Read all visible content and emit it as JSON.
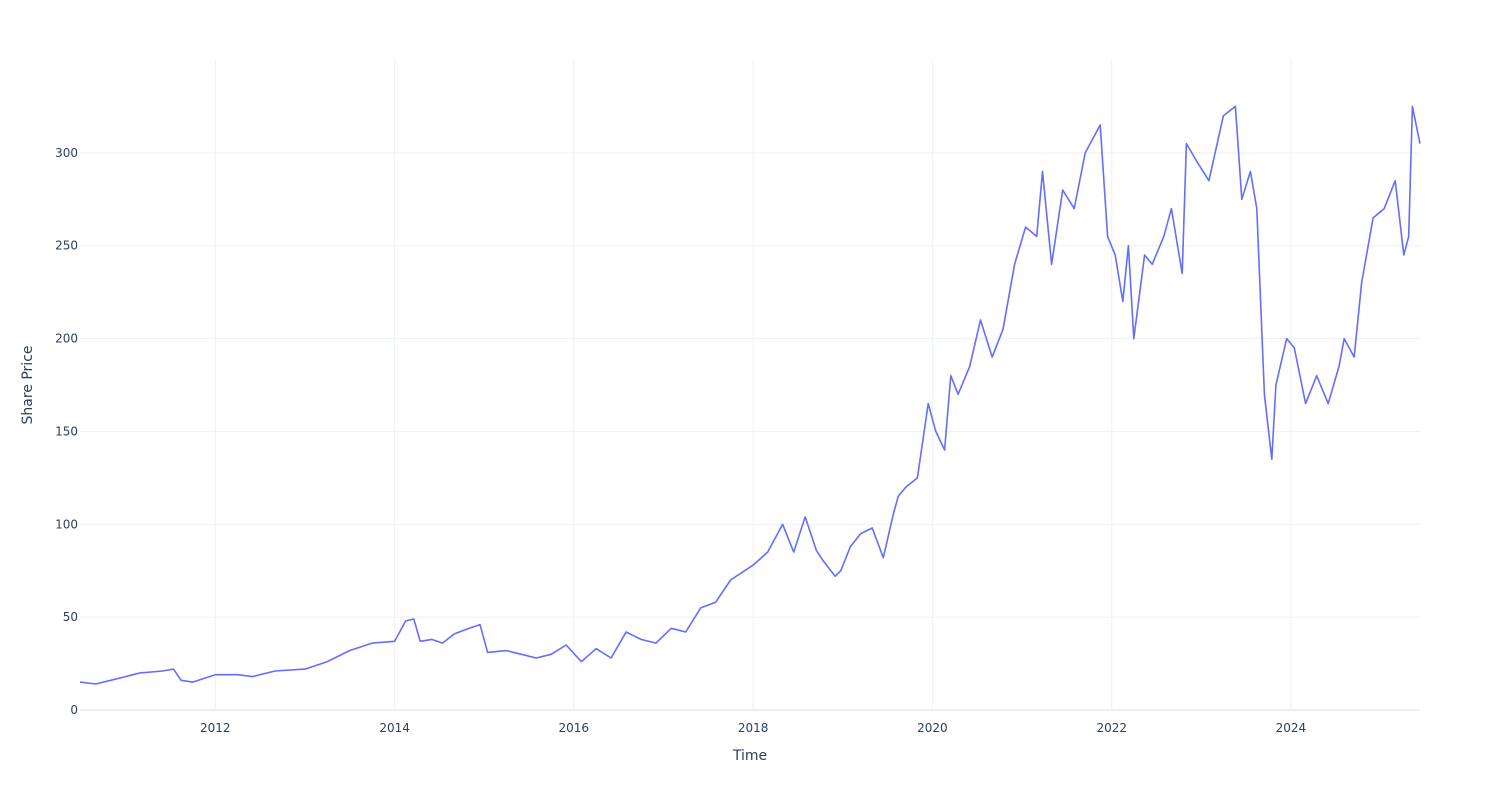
{
  "chart_data": {
    "type": "line",
    "title": "",
    "xlabel": "Time",
    "ylabel": "Share Price",
    "x_type": "date",
    "xlim": [
      "2010-06-29",
      "2025-06-10"
    ],
    "ylim": [
      0,
      350
    ],
    "x_ticks": [
      {
        "value": "2012-01-01",
        "label": "2012"
      },
      {
        "value": "2014-01-01",
        "label": "2014"
      },
      {
        "value": "2016-01-01",
        "label": "2016"
      },
      {
        "value": "2018-01-01",
        "label": "2018"
      },
      {
        "value": "2020-01-01",
        "label": "2020"
      },
      {
        "value": "2022-01-01",
        "label": "2022"
      },
      {
        "value": "2024-01-01",
        "label": "2024"
      }
    ],
    "y_ticks": [
      {
        "value": 0,
        "label": "0"
      },
      {
        "value": 50,
        "label": "50"
      },
      {
        "value": 100,
        "label": "100"
      },
      {
        "value": 150,
        "label": "150"
      },
      {
        "value": 200,
        "label": "200"
      },
      {
        "value": 250,
        "label": "250"
      },
      {
        "value": 300,
        "label": "300"
      }
    ],
    "grid": true,
    "legend": "none",
    "colors": {
      "line": "#636efa",
      "grid": "#ebf0f8",
      "text": "#2a3f5f",
      "background": "#ffffff"
    },
    "series": [
      {
        "x": [
          "2010-06-29",
          "2010-09-01",
          "2010-11-01",
          "2011-01-01",
          "2011-03-01",
          "2011-06-01",
          "2011-07-15",
          "2011-08-15",
          "2011-10-01",
          "2012-01-01",
          "2012-04-01",
          "2012-06-01",
          "2012-09-01",
          "2013-01-01",
          "2013-04-01",
          "2013-07-01",
          "2013-10-01",
          "2014-01-01",
          "2014-02-15",
          "2014-03-20",
          "2014-04-15",
          "2014-06-01",
          "2014-07-15",
          "2014-09-01",
          "2014-11-01",
          "2014-12-15",
          "2015-01-15",
          "2015-04-01",
          "2015-06-01",
          "2015-08-01",
          "2015-10-01",
          "2015-12-01",
          "2016-02-01",
          "2016-04-01",
          "2016-06-01",
          "2016-08-01",
          "2016-10-01",
          "2016-12-01",
          "2017-02-01",
          "2017-04-01",
          "2017-06-01",
          "2017-08-01",
          "2017-10-01",
          "2018-01-01",
          "2018-03-01",
          "2018-05-01",
          "2018-06-15",
          "2018-08-01",
          "2018-09-15",
          "2018-10-15",
          "2018-12-01",
          "2018-12-24",
          "2019-02-01",
          "2019-03-15",
          "2019-05-01",
          "2019-06-15",
          "2019-07-25",
          "2019-08-15",
          "2019-09-15",
          "2019-11-01",
          "2019-12-15",
          "2020-01-15",
          "2020-02-20",
          "2020-03-16",
          "2020-04-15",
          "2020-06-01",
          "2020-07-15",
          "2020-09-01",
          "2020-10-15",
          "2020-12-01",
          "2021-01-15",
          "2021-03-01",
          "2021-03-25",
          "2021-05-01",
          "2021-06-15",
          "2021-08-01",
          "2021-09-15",
          "2021-11-15",
          "2021-12-15",
          "2022-01-15",
          "2022-02-15",
          "2022-03-10",
          "2022-04-01",
          "2022-05-15",
          "2022-06-15",
          "2022-08-01",
          "2022-09-01",
          "2022-10-15",
          "2022-11-01",
          "2022-12-15",
          "2023-02-01",
          "2023-04-01",
          "2023-05-20",
          "2023-06-15",
          "2023-07-20",
          "2023-08-15",
          "2023-09-15",
          "2023-10-15",
          "2023-11-01",
          "2023-12-15",
          "2024-01-15",
          "2024-03-01",
          "2024-04-15",
          "2024-06-01",
          "2024-07-15",
          "2024-08-05",
          "2024-09-15",
          "2024-10-15",
          "2024-12-01",
          "2025-01-15",
          "2025-03-01",
          "2025-04-05",
          "2025-04-25",
          "2025-05-10",
          "2025-06-10"
        ],
        "y": [
          15,
          14,
          16,
          18,
          20,
          21,
          22,
          16,
          15,
          19,
          19,
          18,
          21,
          22,
          26,
          32,
          36,
          37,
          48,
          49,
          37,
          38,
          36,
          41,
          44,
          46,
          31,
          32,
          30,
          28,
          30,
          35,
          26,
          33,
          28,
          42,
          38,
          36,
          44,
          42,
          55,
          58,
          70,
          78,
          85,
          100,
          85,
          104,
          86,
          80,
          72,
          75,
          88,
          95,
          98,
          82,
          105,
          115,
          120,
          125,
          165,
          150,
          140,
          180,
          170,
          185,
          210,
          190,
          205,
          240,
          260,
          255,
          290,
          240,
          280,
          270,
          300,
          315,
          255,
          245,
          220,
          250,
          200,
          245,
          240,
          255,
          270,
          235,
          305,
          295,
          285,
          320,
          325,
          275,
          290,
          270,
          170,
          135,
          175,
          200,
          195,
          165,
          180,
          165,
          185,
          200,
          190,
          230,
          265,
          270,
          285,
          245,
          255,
          325,
          305
        ]
      }
    ]
  }
}
